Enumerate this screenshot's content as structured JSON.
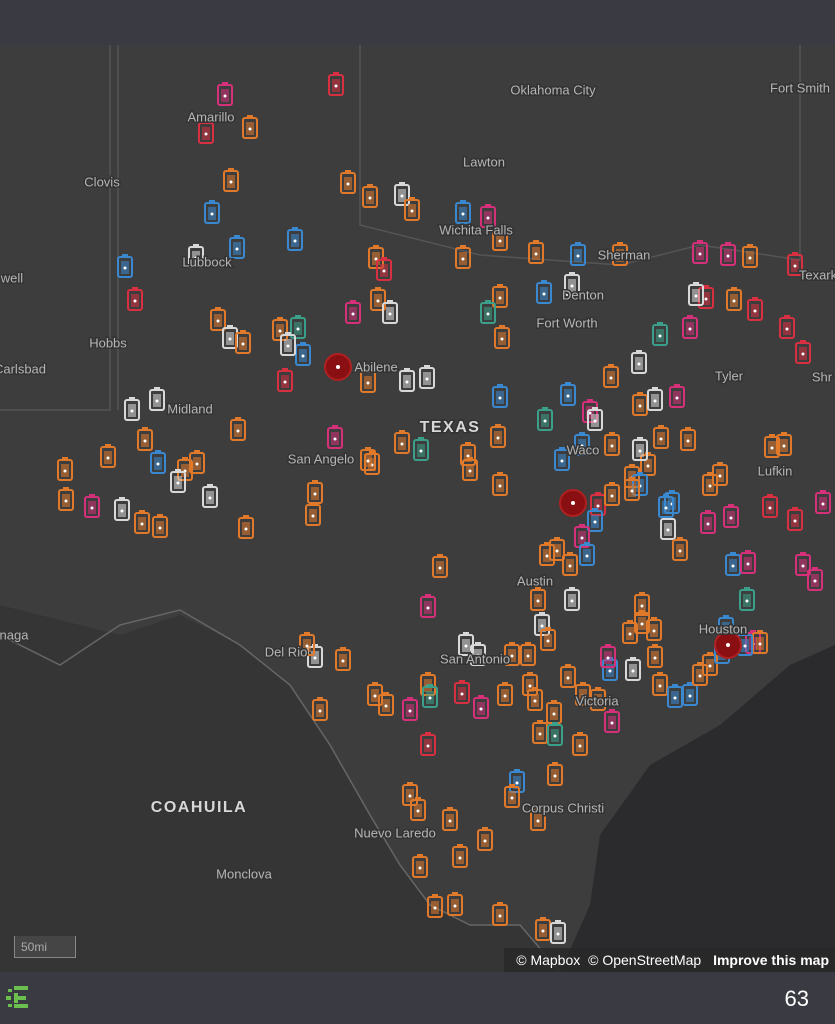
{
  "map": {
    "places": [
      "Oklahoma City",
      "Fort Smith",
      "Amarillo",
      "Lawton",
      "Clovis",
      "Wichita Falls",
      "Sherman",
      "Lubbock",
      "Denton",
      "Texark",
      "well",
      "Hobbs",
      "Fort Worth",
      "Carlsbad",
      "Abilene",
      "Tyler",
      "Shr",
      "Midland",
      "Waco",
      "San Angelo",
      "Lufkin",
      "Austin",
      "naga",
      "Del Rio",
      "San Antonio",
      "Houston",
      "Victoria",
      "Nuevo Laredo",
      "Corpus Christi",
      "Monclova"
    ],
    "regions": [
      "TEXAS",
      "COAHUILA"
    ],
    "scale": "50mi",
    "attribution": [
      "© Mapbox",
      "© OpenStreetMap",
      "Improve this map"
    ]
  },
  "footer": {
    "count": 63
  }
}
